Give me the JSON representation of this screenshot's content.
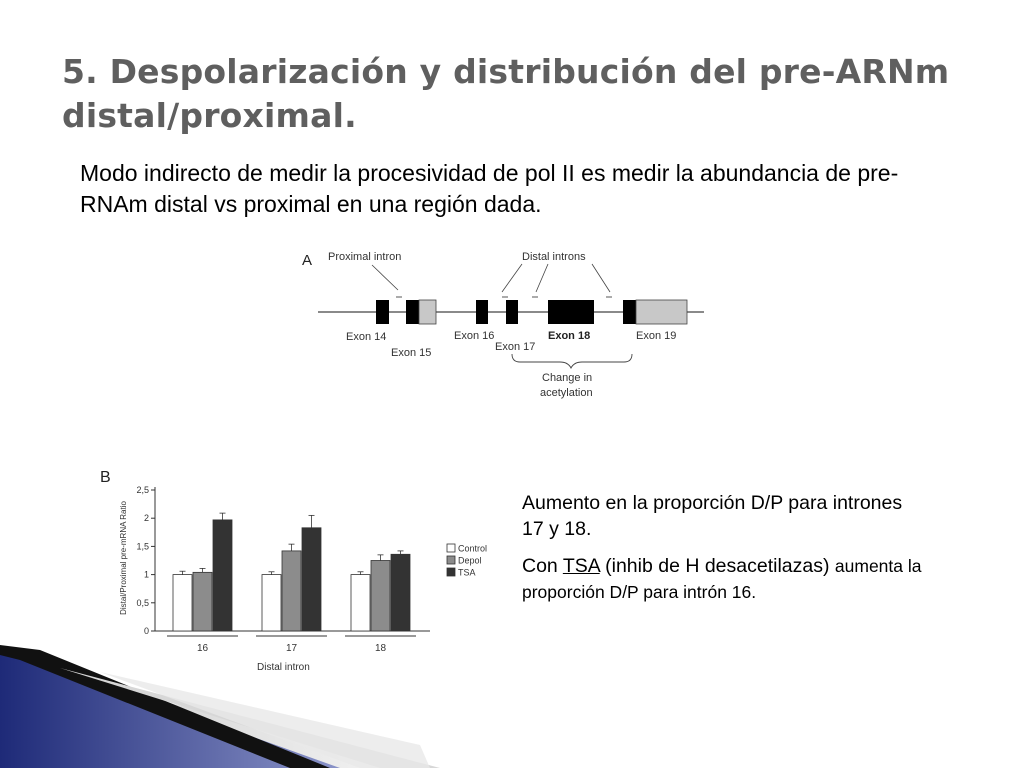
{
  "slide": {
    "title": "5. Despolarización y distribución del pre-ARNm distal/proximal.",
    "intro": "Modo indirecto de medir la procesividad de pol II es medir la abundancia de pre-RNAm distal vs proximal en una región dada.",
    "notes": {
      "p1": "Aumento en la proporción D/P para intrones 17 y 18.",
      "p2_a": "Con ",
      "p2_b": "TSA",
      "p2_c": " (inhib de H desacetilazas) ",
      "p2_d": "aumenta la proporción D/P para intrón 16."
    }
  },
  "diagram": {
    "panel_label": "A",
    "proximal_label": "Proximal intron",
    "distal_label": "Distal introns",
    "exons": [
      "Exon 14",
      "Exon 15",
      "Exon 16",
      "Exon 17",
      "Exon 18",
      "Exon 19"
    ],
    "bracket_label_1": "Change in",
    "bracket_label_2": "acetylation"
  },
  "chart_data": {
    "type": "bar",
    "panel_label": "B",
    "categories": [
      "16",
      "17",
      "18"
    ],
    "series": [
      {
        "name": "Control",
        "values": [
          1.0,
          1.0,
          1.0
        ],
        "errors": [
          0.06,
          0.05,
          0.05
        ],
        "color": "#ffffff"
      },
      {
        "name": "Depol",
        "values": [
          1.04,
          1.42,
          1.25
        ],
        "errors": [
          0.07,
          0.12,
          0.1
        ],
        "color": "#8c8c8c"
      },
      {
        "name": "TSA",
        "values": [
          1.97,
          1.83,
          1.36
        ],
        "errors": [
          0.12,
          0.22,
          0.06
        ],
        "color": "#333333"
      }
    ],
    "xlabel": "Distal intron",
    "ylabel": "Distal/Proximal pre-mRNA Ratio",
    "ylim": [
      0,
      2.5
    ],
    "yticks": [
      "0",
      "0,5",
      "1",
      "1,5",
      "2",
      "2,5"
    ],
    "legend": "right"
  }
}
